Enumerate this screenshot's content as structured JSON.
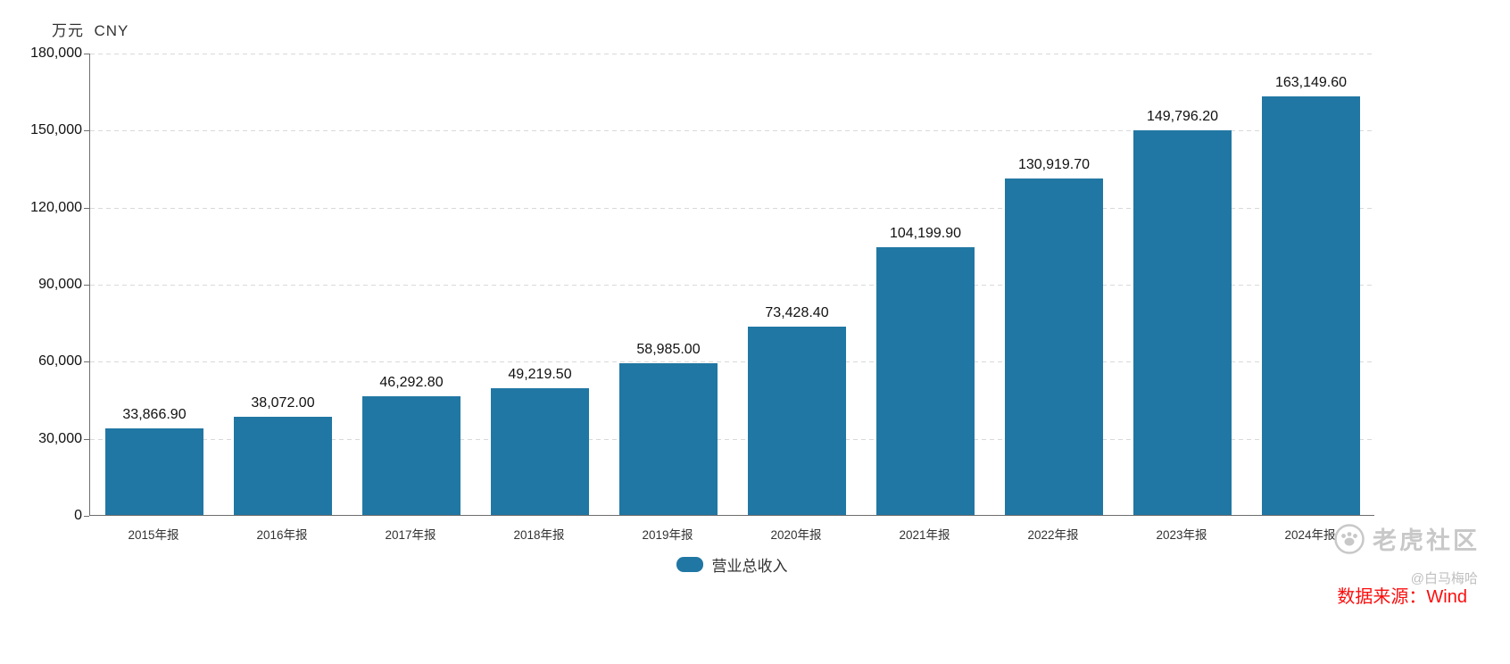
{
  "chart_data": {
    "type": "bar",
    "title": "",
    "unit_label": "万元",
    "currency_label": "CNY",
    "categories": [
      "2015年报",
      "2016年报",
      "2017年报",
      "2018年报",
      "2019年报",
      "2020年报",
      "2021年报",
      "2022年报",
      "2023年报",
      "2024年报"
    ],
    "values": [
      33866.9,
      38072.0,
      46292.8,
      49219.5,
      58985.0,
      73428.4,
      104199.9,
      130919.7,
      149796.2,
      163149.6
    ],
    "value_labels": [
      "33,866.90",
      "38,072.00",
      "46,292.80",
      "49,219.50",
      "58,985.00",
      "73,428.40",
      "104,199.90",
      "130,919.70",
      "149,796.20",
      "163,149.60"
    ],
    "series_name": "营业总收入",
    "ylim": [
      0,
      180000
    ],
    "ytick_step": 30000,
    "ytick_labels": [
      "0",
      "30,000",
      "60,000",
      "90,000",
      "120,000",
      "150,000",
      "180,000"
    ],
    "grid": "horizontal-dashed",
    "legend_position": "bottom-center",
    "bar_color": "#2177a3"
  },
  "legend": {
    "label": "营业总收入",
    "color": "#2177a3"
  },
  "watermark": {
    "brand": "老虎社区",
    "handle": "@白马梅哈"
  },
  "source": {
    "label": "数据来源：Wind"
  },
  "colors": {
    "bar": "#2177a3",
    "grid": "#d9d9d9",
    "axis": "#6e6e6e",
    "text": "#333333",
    "value_text": "#111111",
    "watermark": "#c8c8c8",
    "source": "#fb0d0d"
  }
}
